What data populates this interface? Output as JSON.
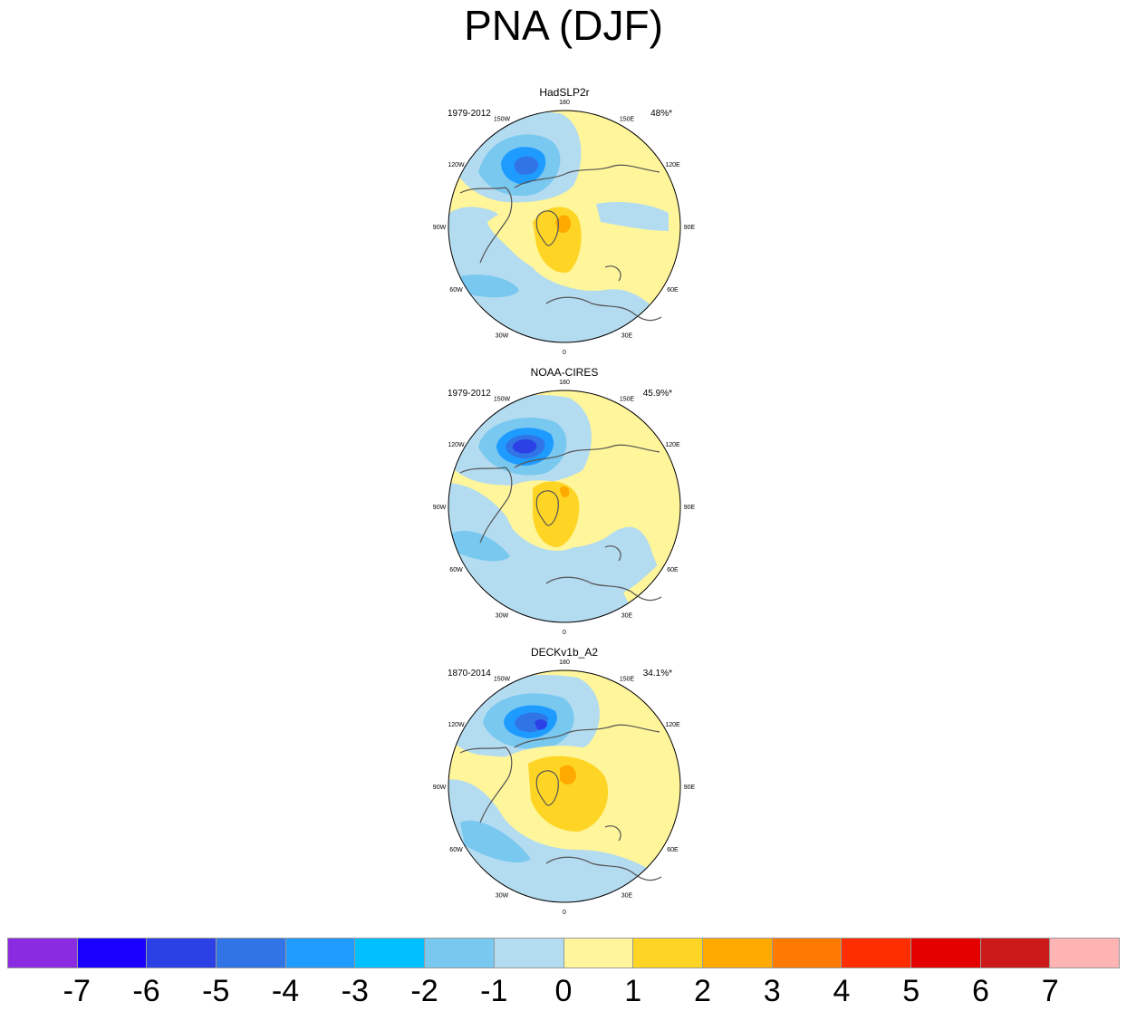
{
  "title": "PNA (DJF)",
  "panels": [
    {
      "name": "HadSLP2r",
      "period": "1979-2012",
      "pct": "48%*"
    },
    {
      "name": "NOAA-CIRES",
      "period": "1979-2012",
      "pct": "45.9%*"
    },
    {
      "name": "DECKv1b_A2",
      "period": "1870-2014",
      "pct": "34.1%*"
    }
  ],
  "lon_labels": [
    "180",
    "150E",
    "120E",
    "90E",
    "60E",
    "30E",
    "0",
    "30W",
    "60W",
    "90W",
    "120W",
    "150W"
  ],
  "colorbar": {
    "colors": [
      "#8a2be2",
      "#1a00ff",
      "#2b41e6",
      "#3174e6",
      "#1e9bff",
      "#00c0ff",
      "#79c8f0",
      "#b4dcf0",
      "#fff59a",
      "#ffd525",
      "#ffaa00",
      "#ff7a00",
      "#ff2e00",
      "#e50000",
      "#cc1a1a",
      "#ffb4b4"
    ],
    "labels": [
      "-7",
      "-6",
      "-5",
      "-4",
      "-3",
      "-2",
      "-1",
      "0",
      "1",
      "2",
      "3",
      "4",
      "5",
      "6",
      "7"
    ]
  }
}
